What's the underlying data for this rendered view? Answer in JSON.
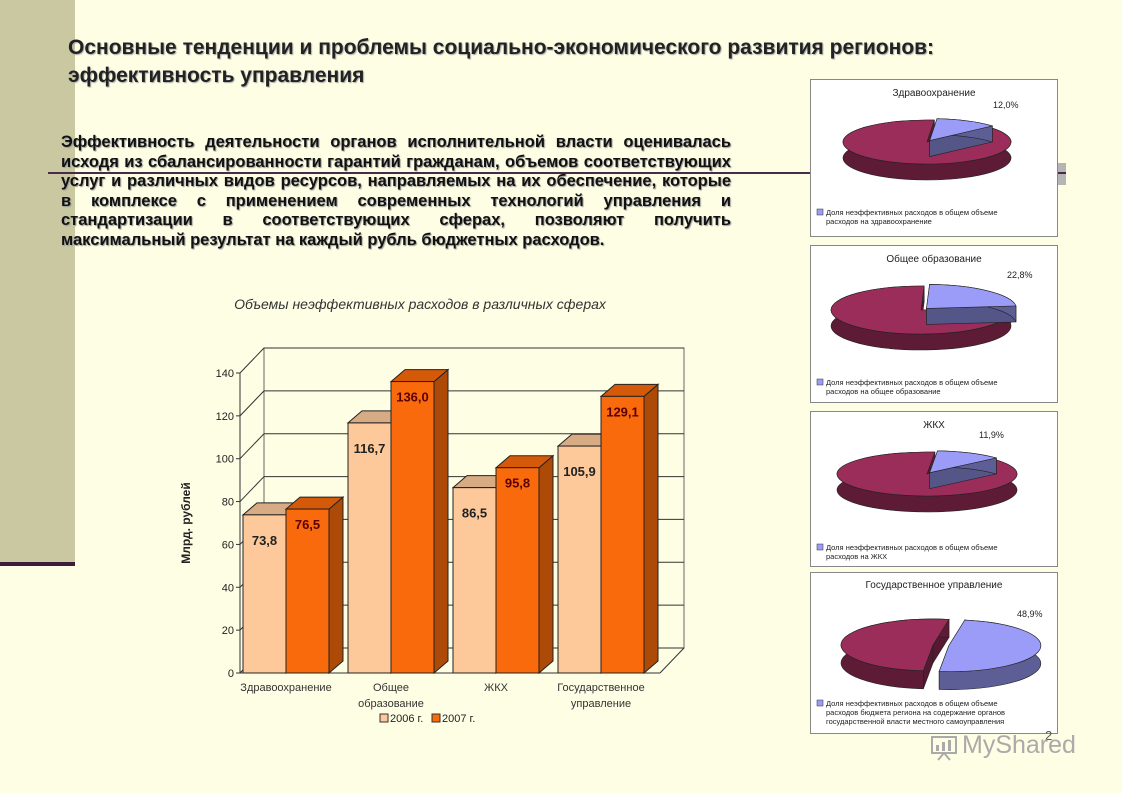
{
  "slide": {
    "title": "Основные тенденции и проблемы социально-экономического развития регионов: эффективность управления",
    "paragraph": "Эффективность деятельности органов исполнительной власти оценивалась исходя из сбалансированности гарантий гражданам, объемов соответствующих услуг и различных видов ресурсов, направляемых на их обеспечение, которые в комплексе с применением современных технологий управления и стандартизации в соответствующих сферах, позволяют получить максимальный результат на каждый рубль бюджетных расходов.",
    "chart_caption": "Объемы неэффективных расходов в различных сферах",
    "page_number": "2",
    "watermark": "MyShared"
  },
  "colors": {
    "bar2006": "#fdc99a",
    "bar2007": "#f96a0c",
    "pie_main": "#9b2d5a",
    "pie_slice": "#9a9cf8",
    "background": "#fefee4"
  },
  "chart_data": [
    {
      "type": "bar",
      "categories": [
        "Здравоохранение",
        "Общее образование",
        "ЖКХ",
        "Государственное управление"
      ],
      "category_lines": [
        [
          "Здравоохранение"
        ],
        [
          "Общее",
          "образование"
        ],
        [
          "ЖКХ"
        ],
        [
          "Государственное",
          "управление"
        ]
      ],
      "series": [
        {
          "name": "2006 г.",
          "values": [
            73.8,
            116.7,
            86.5,
            105.9
          ],
          "labels": [
            "73,8",
            "116,7",
            "86,5",
            "105,9"
          ]
        },
        {
          "name": "2007 г.",
          "values": [
            76.5,
            136.0,
            95.8,
            129.1
          ],
          "labels": [
            "76,5",
            "136,0",
            "95,8",
            "129,1"
          ]
        }
      ],
      "ylabel": "Млрд. рублей",
      "ylim": [
        0,
        140
      ],
      "yticks": [
        "0",
        "20",
        "40",
        "60",
        "80",
        "100",
        "120",
        "140"
      ],
      "grid": true,
      "legend": "bottom"
    },
    {
      "type": "pie",
      "title": "Здравоохранение",
      "slices": [
        {
          "label": "12,0%",
          "value": 12.0
        },
        {
          "label": "",
          "value": 88.0
        }
      ],
      "legend": "Доля неэффективных расходов в общем объеме расходов на здравоохранение"
    },
    {
      "type": "pie",
      "title": "Общее образование",
      "slices": [
        {
          "label": "22,8%",
          "value": 22.8
        },
        {
          "label": "",
          "value": 77.2
        }
      ],
      "legend": "Доля неэффективных расходов в общем объеме расходов на общее образование"
    },
    {
      "type": "pie",
      "title": "ЖКХ",
      "slices": [
        {
          "label": "11,9%",
          "value": 11.9
        },
        {
          "label": "",
          "value": 88.1
        }
      ],
      "legend": "Доля неэффективных расходов в общем объеме расходов на ЖКХ"
    },
    {
      "type": "pie",
      "title": "Государственное управление",
      "slices": [
        {
          "label": "48,9%",
          "value": 48.9
        },
        {
          "label": "",
          "value": 51.1
        }
      ],
      "legend": "Доля неэффективных расходов в общем объеме расходов бюджета региона на содержание органов государственной власти местного самоуправления"
    }
  ]
}
